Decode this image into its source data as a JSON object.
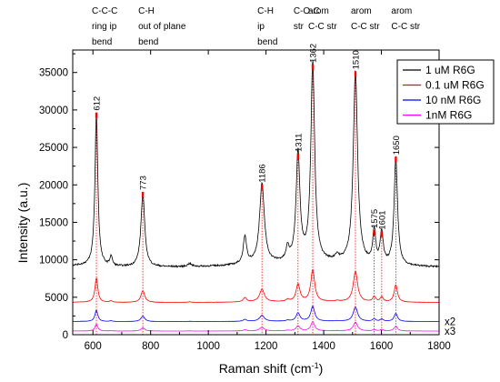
{
  "chart_data": {
    "type": "line",
    "xlabel": "Raman shift (cm",
    "xlabel_sup": "-1",
    "xlabel_end": ")",
    "ylabel": "Intensity (a.u.)",
    "xlim": [
      530,
      1800
    ],
    "ylim": [
      0,
      38000
    ],
    "xticks": [
      600,
      800,
      1000,
      1200,
      1400,
      1600,
      1800
    ],
    "yticks": [
      0,
      5000,
      10000,
      15000,
      20000,
      25000,
      30000,
      35000
    ],
    "legend_position": "top-right",
    "series": [
      {
        "name": "1 uM R6G",
        "color": "#000000",
        "baseline": 9000,
        "scale": 1.0,
        "multiplier": ""
      },
      {
        "name": "0.1 uM R6G",
        "color": "#ff0000",
        "baseline": 4300,
        "scale": 0.16,
        "multiplier": ""
      },
      {
        "name": "10 nM R6G",
        "color": "#0000ff",
        "baseline": 1750,
        "scale": 0.075,
        "multiplier": "x2"
      },
      {
        "name": "1nM R6G",
        "color": "#ff00ff",
        "baseline": 480,
        "scale": 0.045,
        "multiplier": "x3"
      }
    ],
    "peaks": [
      {
        "x": 612,
        "label": "612",
        "height": 29300
      },
      {
        "x": 773,
        "label": "773",
        "height": 18700
      },
      {
        "x": 1186,
        "label": "1186",
        "height": 19700
      },
      {
        "x": 1311,
        "label": "1311",
        "height": 23800
      },
      {
        "x": 1362,
        "label": "1362",
        "height": 35700
      },
      {
        "x": 1510,
        "label": "1510",
        "height": 34800
      },
      {
        "x": 1575,
        "label": "1575",
        "height": 13600
      },
      {
        "x": 1601,
        "label": "1601",
        "height": 13400
      },
      {
        "x": 1650,
        "label": "1650",
        "height": 23400
      }
    ],
    "spectrum_peaks": [
      {
        "x": 612,
        "amp": 20300,
        "w": 6
      },
      {
        "x": 663,
        "amp": 1300,
        "w": 5
      },
      {
        "x": 773,
        "amp": 9700,
        "w": 8
      },
      {
        "x": 935,
        "amp": 400,
        "w": 8
      },
      {
        "x": 1127,
        "amp": 3600,
        "w": 7
      },
      {
        "x": 1186,
        "amp": 10600,
        "w": 10
      },
      {
        "x": 1275,
        "amp": 1700,
        "w": 6
      },
      {
        "x": 1311,
        "amp": 14500,
        "w": 8
      },
      {
        "x": 1362,
        "amp": 26500,
        "w": 8
      },
      {
        "x": 1446,
        "amp": 700,
        "w": 8
      },
      {
        "x": 1510,
        "amp": 25600,
        "w": 9
      },
      {
        "x": 1575,
        "amp": 4400,
        "w": 6
      },
      {
        "x": 1601,
        "amp": 4200,
        "w": 6
      },
      {
        "x": 1650,
        "amp": 14400,
        "w": 7
      }
    ],
    "annotations": [
      {
        "x": 612,
        "lines": [
          "C-C-C",
          "ring ip",
          "bend"
        ]
      },
      {
        "x": 773,
        "lines": [
          "C-H",
          "out of plane",
          "bend"
        ]
      },
      {
        "x": 1186,
        "lines": [
          "C-H",
          "ip",
          "bend"
        ]
      },
      {
        "x": 1311,
        "lines": [
          "C-O-C",
          "str"
        ]
      },
      {
        "x": 1362,
        "lines": [
          "arom",
          "C-C str"
        ]
      },
      {
        "x": 1510,
        "lines": [
          "arom",
          "C-C str"
        ]
      },
      {
        "x": 1650,
        "lines": [
          "arom",
          "C-C str"
        ]
      }
    ]
  }
}
